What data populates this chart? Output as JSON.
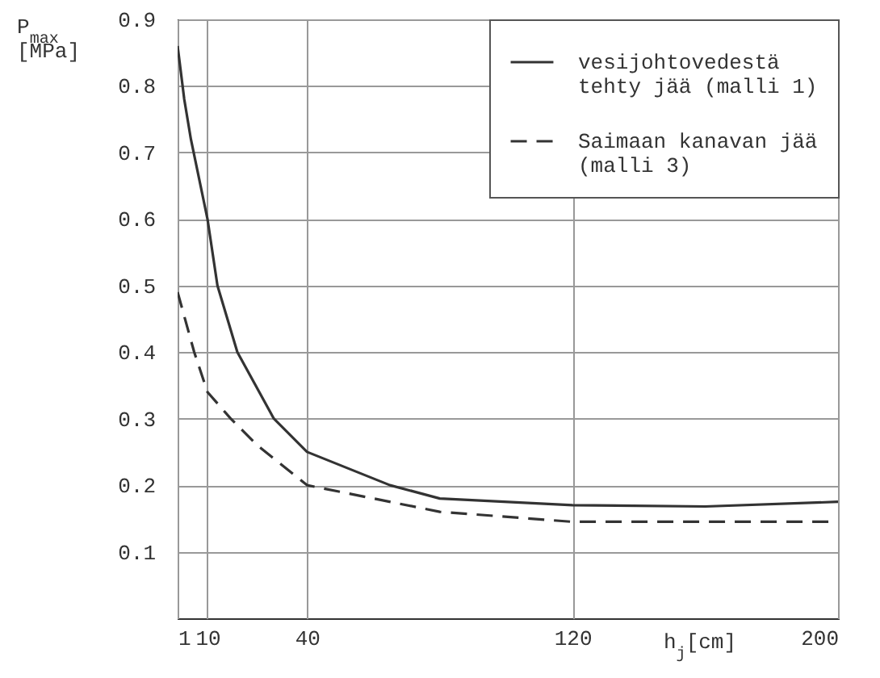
{
  "chart_data": {
    "type": "line",
    "ylabel": "P$_{max}$ [MPa]",
    "xlabel": "h$_{j}$[cm]",
    "xlim": [
      1,
      200
    ],
    "xticks": [
      1,
      10,
      40,
      120,
      200
    ],
    "ylim": [
      0,
      0.9
    ],
    "yticks": [
      0.1,
      0.2,
      0.3,
      0.4,
      0.5,
      0.6,
      0.7,
      0.8,
      0.9
    ],
    "grid": true,
    "legend": "top right",
    "series": [
      {
        "name": "vesijohtovedestä tehty jää (malli 1)",
        "color": "#333333",
        "line_style": "solid",
        "x": [
          1,
          3,
          5,
          10,
          13,
          19,
          30,
          40,
          65,
          80,
          120,
          160,
          200
        ],
        "values": [
          0.86,
          0.78,
          0.72,
          0.6,
          0.5,
          0.4,
          0.3,
          0.25,
          0.2,
          0.18,
          0.17,
          0.168,
          0.175
        ]
      },
      {
        "name": "Saimaan kanavan jää (malli 3)",
        "color": "#333333",
        "line_style": "dashed",
        "x": [
          1,
          6,
          10,
          17,
          25,
          40,
          80,
          120,
          200
        ],
        "values": [
          0.49,
          0.4,
          0.34,
          0.3,
          0.26,
          0.2,
          0.16,
          0.145,
          0.145
        ]
      }
    ]
  }
}
